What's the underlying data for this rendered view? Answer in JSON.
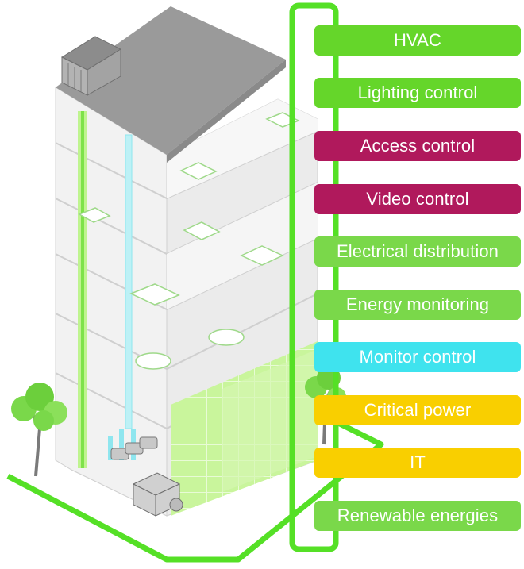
{
  "systems": [
    {
      "label": "HVAC",
      "color": "#65d62a"
    },
    {
      "label": "Lighting control",
      "color": "#65d62a"
    },
    {
      "label": "Access control",
      "color": "#b0195c"
    },
    {
      "label": "Video control",
      "color": "#b0195c"
    },
    {
      "label": "Electrical distribution",
      "color": "#7ad84a"
    },
    {
      "label": "Energy monitoring",
      "color": "#7ad84a"
    },
    {
      "label": "Monitor control",
      "color": "#3fe3ee"
    },
    {
      "label": "Critical power",
      "color": "#f9cf00"
    },
    {
      "label": "IT",
      "color": "#f9cf00"
    },
    {
      "label": "Renewable energies",
      "color": "#7ad84a"
    }
  ],
  "colors": {
    "network": "#55e026",
    "roof": "#9a9a9a",
    "wall": "#e6e6e6",
    "glass": "#dff7c8",
    "duct": "#8fe6ef",
    "tree": "#7ad84a"
  }
}
